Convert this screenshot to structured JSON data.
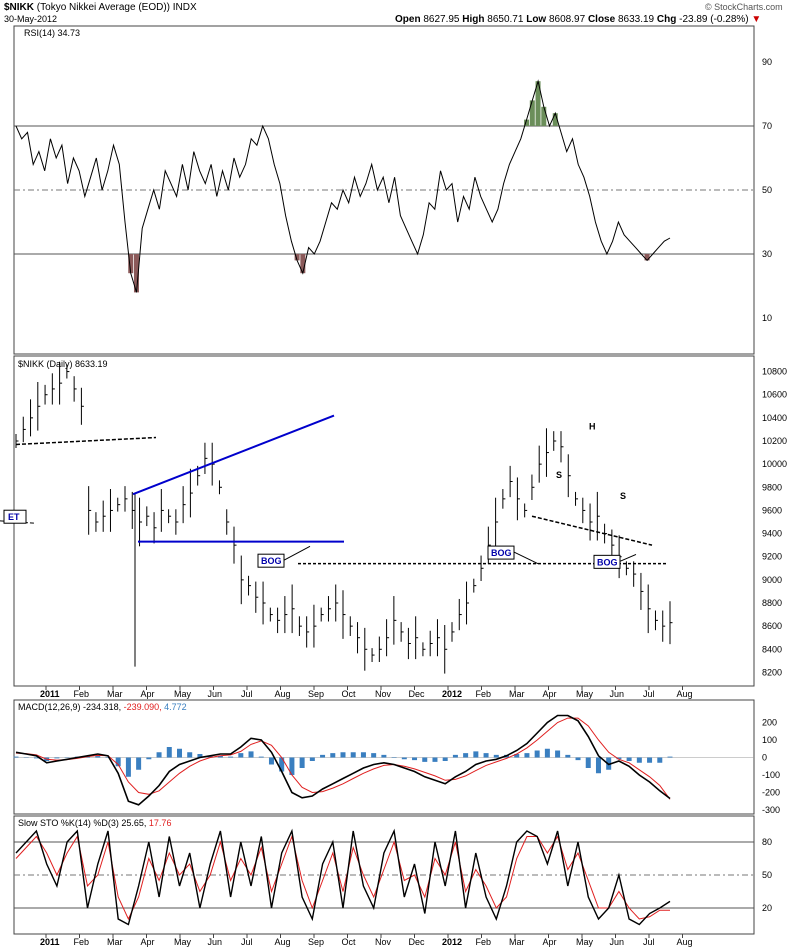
{
  "header": {
    "symbol": "$NIKK",
    "name": "(Tokyo Nikkei Average (EOD)) INDX",
    "date": "30-May-2012",
    "open_label": "Open",
    "open": "8627.95",
    "high_label": "High",
    "high": "8650.71",
    "low_label": "Low",
    "low": "8608.97",
    "close_label": "Close",
    "close": "8633.19",
    "chg_label": "Chg",
    "chg": "-23.89 (-0.28%)",
    "chg_arrow": "▼",
    "credit": "© StockCharts.com"
  },
  "colors": {
    "price_bar": "#000000",
    "trendline_blue": "#0000cc",
    "rsi_fill_overbought": "#6b8e5a",
    "rsi_fill_oversold": "#8b5a5a",
    "macd_hist": "#3a7fc0",
    "signal_red": "#e02020",
    "grid": "#b0b0b0",
    "bog_text": "#0000aa"
  },
  "chart_data": [
    {
      "id": "rsi",
      "type": "line",
      "title": "RSI(14) 34.73",
      "ylim": [
        0,
        100
      ],
      "yticks": [
        10,
        30,
        50,
        70,
        90
      ],
      "reference_lines": [
        30,
        50,
        70
      ],
      "series": [
        {
          "name": "RSI(14)",
          "values": [
            70,
            66,
            68,
            58,
            62,
            56,
            66,
            60,
            64,
            52,
            60,
            56,
            48,
            54,
            60,
            50,
            56,
            64,
            58,
            40,
            24,
            18,
            38,
            44,
            50,
            44,
            56,
            52,
            48,
            58,
            50,
            62,
            56,
            52,
            58,
            48,
            56,
            50,
            60,
            54,
            58,
            66,
            64,
            70,
            66,
            58,
            52,
            42,
            34,
            28,
            24,
            32,
            30,
            34,
            40,
            46,
            44,
            50,
            46,
            54,
            48,
            52,
            58,
            50,
            54,
            46,
            54,
            42,
            38,
            34,
            30,
            36,
            46,
            44,
            56,
            50,
            52,
            40,
            48,
            44,
            54,
            48,
            44,
            40,
            44,
            52,
            58,
            62,
            66,
            72,
            78,
            84,
            76,
            70,
            74,
            68,
            62,
            66,
            58,
            54,
            48,
            40,
            34,
            30,
            34,
            40,
            36,
            34,
            32,
            30,
            28,
            30,
            32,
            34,
            35
          ]
        }
      ]
    },
    {
      "id": "price",
      "type": "ohlc",
      "title": "$NIKK (Daily) 8633.19",
      "ylim": [
        8100,
        10900
      ],
      "yticks": [
        8200,
        8400,
        8600,
        8800,
        9000,
        9200,
        9400,
        9600,
        9800,
        10000,
        10200,
        10400,
        10600,
        10800
      ],
      "x_tick_labels": [
        "2011",
        "Feb",
        "Mar",
        "Apr",
        "May",
        "Jun",
        "Jul",
        "Aug",
        "Sep",
        "Oct",
        "Nov",
        "Dec",
        "2012",
        "Feb",
        "Mar",
        "Apr",
        "May",
        "Jun",
        "Jul",
        "Aug"
      ],
      "values": [
        10200,
        10300,
        10400,
        10500,
        10600,
        10650,
        10700,
        10800,
        10650,
        10500,
        9600,
        9500,
        9550,
        9600,
        9650,
        9700,
        9600,
        9500,
        9550,
        9450,
        9600,
        9550,
        9500,
        9650,
        9750,
        9900,
        10050,
        10000,
        9800,
        9500,
        9300,
        9000,
        8950,
        8850,
        8800,
        8700,
        8650,
        8700,
        8750,
        8600,
        8550,
        8600,
        8700,
        8750,
        8800,
        8700,
        8600,
        8500,
        8400,
        8350,
        8400,
        8500,
        8650,
        8550,
        8450,
        8500,
        8400,
        8450,
        8500,
        8400,
        8550,
        8700,
        8800,
        8950,
        9100,
        9300,
        9500,
        9700,
        9850,
        9700,
        9600,
        9800,
        10000,
        10100,
        10200,
        10150,
        9900,
        9700,
        9600,
        9500,
        9550,
        9400,
        9300,
        9200,
        9100,
        9050,
        8900,
        8750,
        8650,
        8600,
        8630
      ],
      "annotations": [
        {
          "text": "BOG",
          "price": 9170
        },
        {
          "text": "BOG",
          "price": 9240
        },
        {
          "text": "BOG",
          "price": 9160
        },
        {
          "text": "S",
          "price": 9880
        },
        {
          "text": "H",
          "price": 10300
        },
        {
          "text": "S",
          "price": 9700
        },
        {
          "text": "ET",
          "price": 9550
        }
      ]
    },
    {
      "id": "macd",
      "type": "line",
      "title_a": "MACD(12,26,9)",
      "title_b": "-234.318,",
      "title_c": "-239.090,",
      "title_d": "4.772",
      "ylim": [
        -300,
        260
      ],
      "yticks": [
        200,
        100,
        0,
        -100,
        -200,
        -300
      ],
      "series": [
        {
          "name": "MACD",
          "values": [
            30,
            20,
            10,
            -30,
            -20,
            -10,
            0,
            10,
            20,
            10,
            -90,
            -250,
            -270,
            -220,
            -160,
            -80,
            -40,
            -20,
            0,
            10,
            20,
            20,
            60,
            110,
            100,
            30,
            -80,
            -200,
            -230,
            -220,
            -180,
            -150,
            -120,
            -90,
            -60,
            -40,
            -30,
            -40,
            -60,
            -80,
            -110,
            -130,
            -150,
            -110,
            -80,
            -40,
            -20,
            -10,
            10,
            40,
            80,
            140,
            200,
            240,
            240,
            210,
            120,
            10,
            -40,
            -20,
            -50,
            -100,
            -140,
            -190,
            -234
          ]
        },
        {
          "name": "Signal",
          "values": [
            25,
            22,
            15,
            -10,
            -15,
            -12,
            -5,
            5,
            12,
            10,
            -40,
            -140,
            -200,
            -210,
            -190,
            -140,
            -90,
            -50,
            -20,
            0,
            10,
            15,
            35,
            75,
            95,
            70,
            0,
            -100,
            -170,
            -200,
            -195,
            -175,
            -150,
            -120,
            -90,
            -65,
            -45,
            -40,
            -50,
            -65,
            -85,
            -105,
            -130,
            -125,
            -105,
            -75,
            -45,
            -25,
            -5,
            20,
            55,
            100,
            150,
            200,
            225,
            225,
            180,
            100,
            30,
            -10,
            -30,
            -70,
            -110,
            -160,
            -239
          ]
        },
        {
          "name": "Histogram",
          "values": [
            5,
            -2,
            -5,
            -20,
            -5,
            2,
            5,
            5,
            8,
            0,
            -50,
            -110,
            -70,
            -10,
            30,
            60,
            50,
            30,
            20,
            10,
            10,
            5,
            25,
            35,
            5,
            -40,
            -80,
            -100,
            -60,
            -20,
            15,
            25,
            30,
            30,
            30,
            25,
            15,
            0,
            -10,
            -15,
            -25,
            -25,
            -20,
            15,
            25,
            35,
            25,
            15,
            15,
            20,
            25,
            40,
            50,
            40,
            15,
            -15,
            -60,
            -90,
            -70,
            -10,
            -20,
            -30,
            -30,
            -30,
            5
          ]
        }
      ]
    },
    {
      "id": "sto",
      "type": "line",
      "title_a": "Slow STO %K(14) %D(3)",
      "title_b": "25.65,",
      "title_c": "17.76",
      "ylim": [
        0,
        100
      ],
      "yticks": [
        80,
        50,
        20
      ],
      "x_tick_labels": [
        "2011",
        "Feb",
        "Mar",
        "Apr",
        "May",
        "Jun",
        "Jul",
        "Aug",
        "Sep",
        "Oct",
        "Nov",
        "Dec",
        "2012",
        "Feb",
        "Mar",
        "Apr",
        "May",
        "Jun",
        "Jul",
        "Aug"
      ],
      "series": [
        {
          "name": "%K",
          "values": [
            70,
            80,
            90,
            60,
            40,
            80,
            90,
            20,
            60,
            90,
            10,
            5,
            40,
            80,
            30,
            85,
            40,
            70,
            20,
            60,
            90,
            30,
            80,
            40,
            85,
            20,
            70,
            90,
            30,
            10,
            60,
            80,
            20,
            90,
            40,
            20,
            70,
            90,
            30,
            60,
            15,
            80,
            40,
            90,
            20,
            70,
            30,
            10,
            40,
            80,
            90,
            85,
            60,
            90,
            40,
            80,
            30,
            10,
            20,
            50,
            10,
            5,
            15,
            20,
            26
          ]
        },
        {
          "name": "%D",
          "values": [
            65,
            75,
            85,
            70,
            50,
            70,
            85,
            40,
            50,
            80,
            30,
            10,
            30,
            65,
            45,
            70,
            50,
            60,
            35,
            50,
            80,
            45,
            65,
            50,
            75,
            35,
            60,
            85,
            45,
            20,
            45,
            70,
            35,
            75,
            50,
            30,
            55,
            80,
            45,
            50,
            30,
            65,
            50,
            80,
            35,
            55,
            40,
            20,
            30,
            65,
            85,
            85,
            70,
            85,
            55,
            70,
            45,
            20,
            20,
            35,
            20,
            10,
            12,
            18,
            18
          ]
        }
      ]
    }
  ]
}
